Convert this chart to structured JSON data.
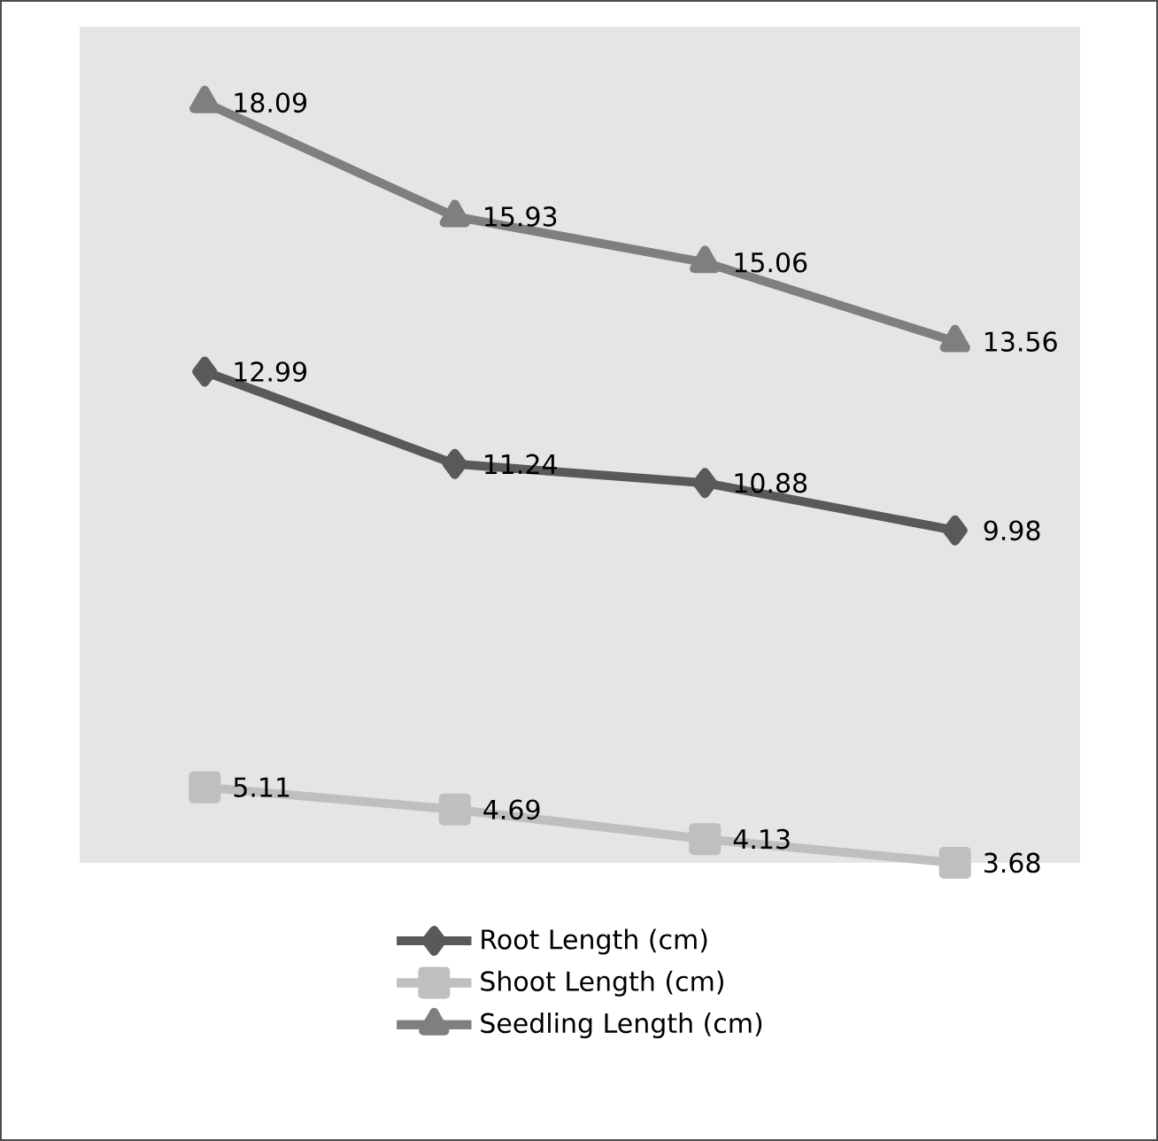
{
  "chart_data": {
    "type": "line",
    "categories": [
      null,
      null,
      null,
      null
    ],
    "data_labels": true,
    "legend": "bottom",
    "series": [
      {
        "name": "Root Length (cm)",
        "color": "#595959",
        "marker": "diamond",
        "values": [
          12.99,
          11.24,
          10.88,
          9.98
        ]
      },
      {
        "name": "Shoot Length (cm)",
        "color": "#bfbfbf",
        "marker": "square",
        "values": [
          5.11,
          4.69,
          4.13,
          3.68
        ]
      },
      {
        "name": "Seedling Length (cm)",
        "color": "#7f7f7f",
        "marker": "triangle",
        "values": [
          18.09,
          15.93,
          15.06,
          13.56
        ]
      }
    ]
  }
}
